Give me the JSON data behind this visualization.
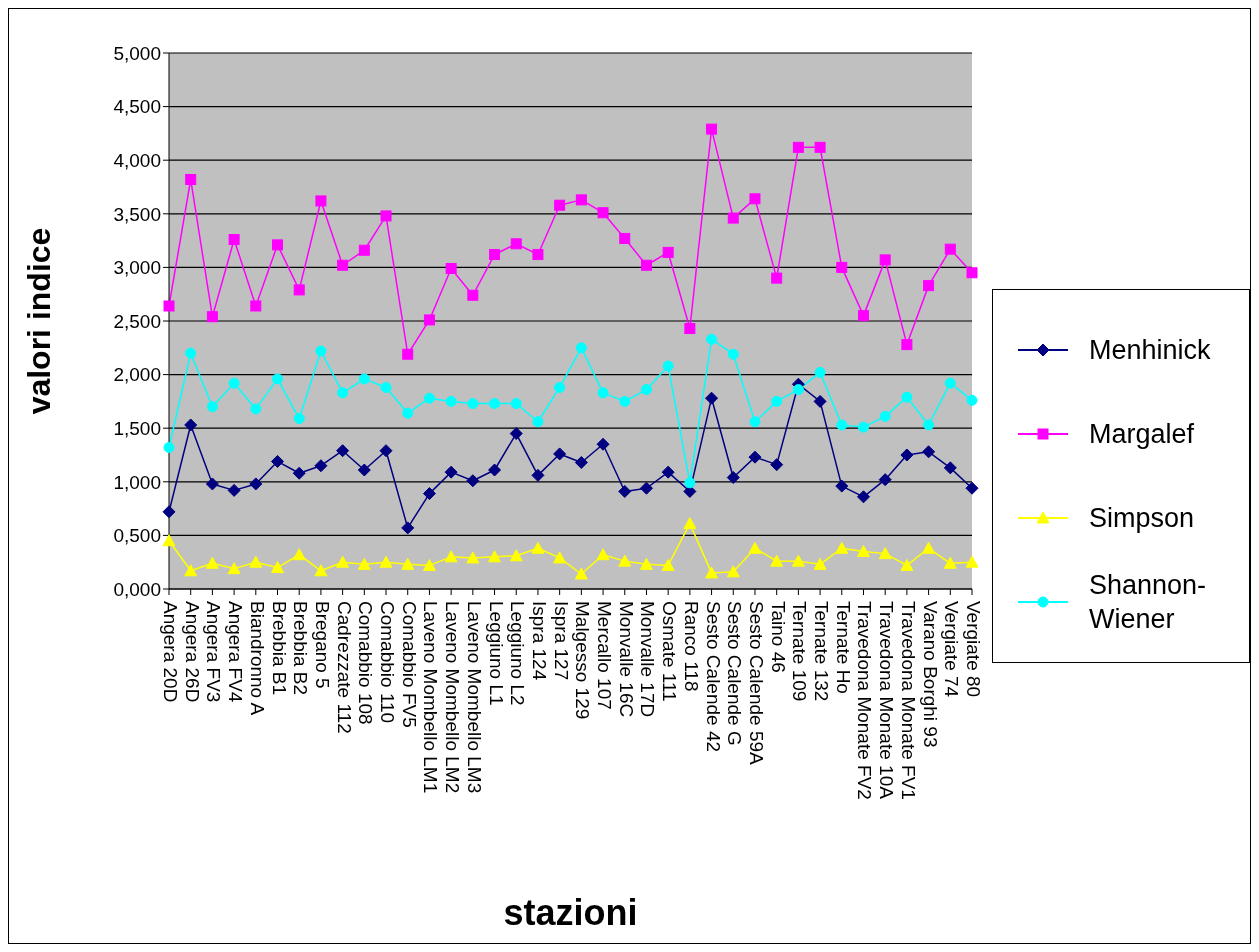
{
  "chart_data": {
    "type": "line",
    "xlabel": "stazioni",
    "ylabel": "valori indice",
    "categories": [
      "Angera 20D",
      "Angera 26D",
      "Angera FV3",
      "Angera FV4",
      "Biandronno A",
      "Brebbia B1",
      "Brebbia B2",
      "Bregano 5",
      "Cadrezzate 112",
      "Comabbio 108",
      "Comabbio 110",
      "Comabbio FV5",
      "Laveno Mombello LM1",
      "Laveno Mombello LM2",
      "Laveno Mombello LM3",
      "Leggiuno L1",
      "Leggiuno L2",
      "Ispra 124",
      "Ispra 127",
      "Malgesso 129",
      "Mercallo 107",
      "Monvalle 16C",
      "Monvalle 17D",
      "Osmate 111",
      "Ranco 118",
      "Sesto Calende 42",
      "Sesto Calende G",
      "Sesto Calende 59A",
      "Taino 46",
      "Ternate 109",
      "Ternate 132",
      "Ternate Ho",
      "Travedona Monate FV2",
      "Travedona Monate 10A",
      "Travedona Monate FV1",
      "Varano Borghi 93",
      "Vergiate 74",
      "Vergiate 80"
    ],
    "series": [
      {
        "name": "Menhinick",
        "color": "#000080",
        "marker": "diamond",
        "values": [
          0.72,
          1.53,
          0.98,
          0.92,
          0.98,
          1.19,
          1.08,
          1.15,
          1.29,
          1.11,
          1.29,
          0.57,
          0.89,
          1.09,
          1.01,
          1.11,
          1.45,
          1.06,
          1.26,
          1.18,
          1.35,
          0.91,
          0.94,
          1.09,
          0.91,
          1.78,
          1.04,
          1.23,
          1.16,
          1.91,
          1.75,
          0.96,
          0.86,
          1.02,
          1.25,
          1.28,
          1.13,
          0.94
        ]
      },
      {
        "name": "Margalef",
        "color": "#ff00ff",
        "marker": "square",
        "values": [
          2.64,
          3.82,
          2.54,
          3.26,
          2.64,
          3.21,
          2.79,
          3.62,
          3.02,
          3.16,
          3.48,
          2.19,
          2.51,
          2.99,
          2.74,
          3.12,
          3.22,
          3.12,
          3.58,
          3.63,
          3.51,
          3.27,
          3.02,
          3.14,
          2.43,
          4.29,
          3.46,
          3.64,
          2.9,
          4.12,
          4.12,
          3.0,
          2.55,
          3.07,
          2.28,
          2.83,
          3.17,
          2.95
        ]
      },
      {
        "name": "Simpson",
        "color": "#ffff00",
        "marker": "triangle",
        "values": [
          0.45,
          0.17,
          0.24,
          0.19,
          0.25,
          0.2,
          0.32,
          0.17,
          0.25,
          0.23,
          0.25,
          0.23,
          0.22,
          0.3,
          0.29,
          0.3,
          0.31,
          0.38,
          0.29,
          0.14,
          0.32,
          0.26,
          0.23,
          0.22,
          0.61,
          0.15,
          0.16,
          0.38,
          0.26,
          0.26,
          0.23,
          0.38,
          0.35,
          0.33,
          0.22,
          0.38,
          0.24,
          0.25
        ]
      },
      {
        "name": "Shannon-Wiener",
        "color": "#00ffff",
        "marker": "circle",
        "values": [
          1.32,
          2.2,
          1.7,
          1.92,
          1.68,
          1.96,
          1.59,
          2.22,
          1.83,
          1.96,
          1.88,
          1.64,
          1.78,
          1.75,
          1.73,
          1.73,
          1.73,
          1.56,
          1.88,
          2.25,
          1.83,
          1.75,
          1.86,
          2.08,
          0.99,
          2.33,
          2.19,
          1.56,
          1.75,
          1.86,
          2.02,
          1.53,
          1.51,
          1.61,
          1.79,
          1.53,
          1.92,
          1.76
        ]
      }
    ],
    "ylim": [
      0,
      5
    ],
    "yticks": [
      {
        "value": 0,
        "label": "0,000"
      },
      {
        "value": 0.5,
        "label": "0,500"
      },
      {
        "value": 1,
        "label": "1,000"
      },
      {
        "value": 1.5,
        "label": "1,500"
      },
      {
        "value": 2,
        "label": "2,000"
      },
      {
        "value": 2.5,
        "label": "2,500"
      },
      {
        "value": 3,
        "label": "3,000"
      },
      {
        "value": 3.5,
        "label": "3,500"
      },
      {
        "value": 4,
        "label": "4,000"
      },
      {
        "value": 4.5,
        "label": "4,500"
      },
      {
        "value": 5,
        "label": "5,000"
      }
    ],
    "grid": "y",
    "legend": "right",
    "line_style": "solid"
  }
}
